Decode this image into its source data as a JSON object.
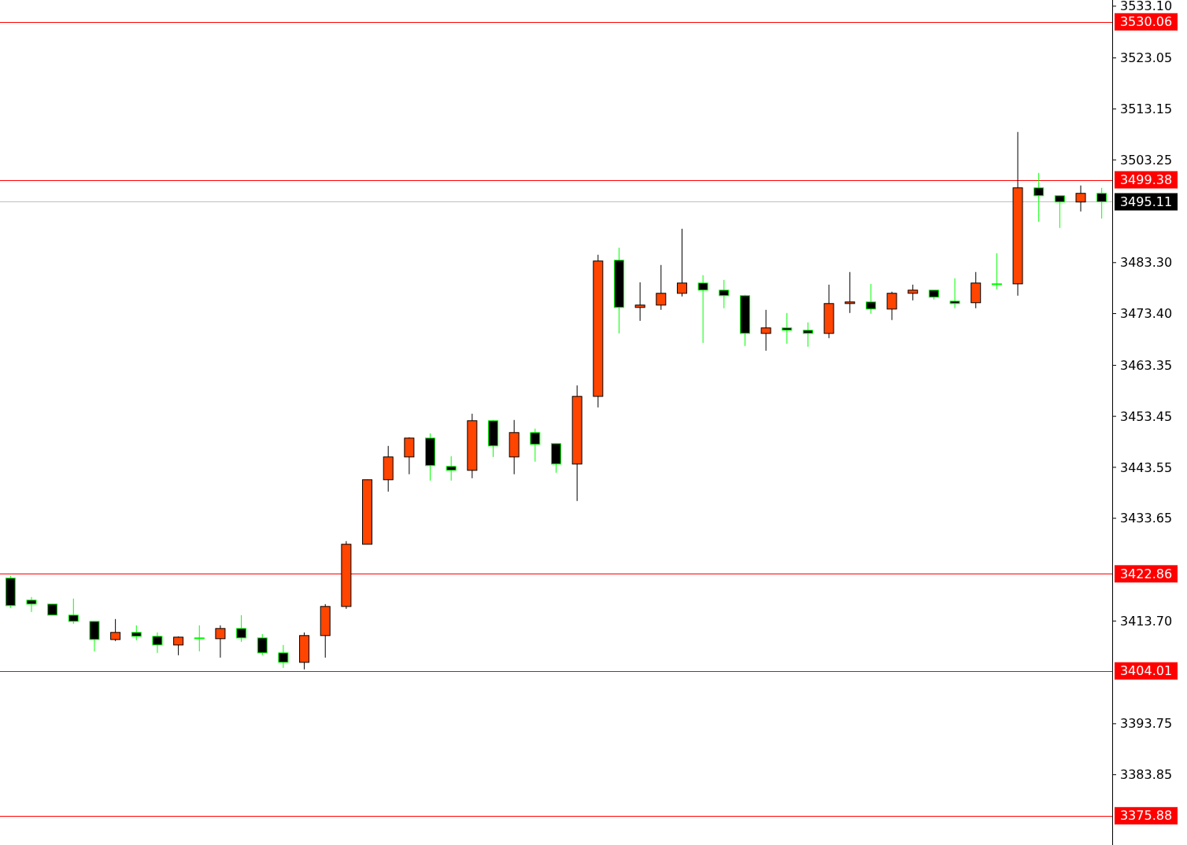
{
  "chart_data": {
    "type": "candlestick",
    "categories": [
      null,
      null,
      null,
      null,
      null,
      null,
      null,
      null,
      null,
      null,
      null,
      null,
      null,
      null,
      null,
      null,
      null,
      null,
      null,
      null,
      null,
      null,
      null,
      null,
      null,
      null,
      null,
      null,
      null,
      null,
      null,
      null,
      null,
      null,
      null,
      null,
      null,
      null,
      null,
      null,
      null,
      null,
      null,
      null,
      null,
      null,
      null,
      null,
      null,
      null,
      null,
      null,
      null
    ],
    "ohlc": [
      [
        3422.02,
        3422.48,
        3416.22,
        3416.68
      ],
      [
        3417.75,
        3418.36,
        3415.45,
        3416.98
      ],
      [
        3416.98,
        3416.98,
        3414.84,
        3414.84
      ],
      [
        3414.84,
        3418.05,
        3413.16,
        3413.62
      ],
      [
        3413.62,
        3413.62,
        3407.81,
        3410.1
      ],
      [
        3410.1,
        3414.08,
        3409.8,
        3411.48
      ],
      [
        3411.48,
        3412.86,
        3409.95,
        3410.72
      ],
      [
        3410.72,
        3411.48,
        3407.51,
        3409.04
      ],
      [
        3409.04,
        3410.72,
        3407.05,
        3410.56
      ],
      [
        3410.41,
        3412.86,
        3407.81,
        3410.41
      ],
      [
        3410.26,
        3412.86,
        3406.59,
        3412.24
      ],
      [
        3412.24,
        3414.84,
        3409.65,
        3410.41
      ],
      [
        3410.41,
        3411.17,
        3407.05,
        3407.51
      ],
      [
        3407.51,
        3409.04,
        3404.6,
        3405.67
      ],
      [
        3405.67,
        3411.48,
        3404.3,
        3410.87
      ],
      [
        3410.87,
        3416.98,
        3406.59,
        3416.52
      ],
      [
        3416.52,
        3429.21,
        3416.06,
        3428.6
      ],
      [
        3428.6,
        3441.13,
        3428.6,
        3441.13
      ],
      [
        3441.13,
        3447.7,
        3438.83,
        3445.56
      ],
      [
        3445.56,
        3449.38,
        3442.2,
        3449.22
      ],
      [
        3449.22,
        3450.14,
        3440.97,
        3443.88
      ],
      [
        3443.72,
        3445.71,
        3440.97,
        3442.96
      ],
      [
        3442.96,
        3453.96,
        3441.43,
        3452.59
      ],
      [
        3452.59,
        3452.74,
        3445.56,
        3447.7
      ],
      [
        3445.56,
        3452.74,
        3442.2,
        3450.29
      ],
      [
        3450.29,
        3451.06,
        3444.64,
        3448.0
      ],
      [
        3448.15,
        3448.15,
        3442.5,
        3444.18
      ],
      [
        3444.18,
        3459.46,
        3437.0,
        3457.32
      ],
      [
        3457.32,
        3484.83,
        3455.18,
        3483.61
      ],
      [
        3483.76,
        3486.2,
        3469.55,
        3474.59
      ],
      [
        3474.59,
        3479.48,
        3471.99,
        3475.05
      ],
      [
        3475.05,
        3482.84,
        3474.13,
        3477.34
      ],
      [
        3477.34,
        3489.87,
        3476.73,
        3479.33
      ],
      [
        3479.33,
        3480.86,
        3467.71,
        3477.95
      ],
      [
        3477.95,
        3479.94,
        3474.44,
        3476.88
      ],
      [
        3476.88,
        3477.04,
        3467.1,
        3469.55
      ],
      [
        3469.55,
        3474.13,
        3466.19,
        3470.62
      ],
      [
        3470.62,
        3473.52,
        3467.56,
        3470.16
      ],
      [
        3470.16,
        3471.69,
        3466.95,
        3469.55
      ],
      [
        3469.55,
        3479.02,
        3468.63,
        3475.35
      ],
      [
        3475.35,
        3481.47,
        3473.52,
        3475.66
      ],
      [
        3475.66,
        3479.17,
        3473.37,
        3474.28
      ],
      [
        3474.28,
        3477.65,
        3472.15,
        3477.34
      ],
      [
        3477.34,
        3479.02,
        3475.97,
        3477.95
      ],
      [
        3477.95,
        3477.95,
        3476.12,
        3476.58
      ],
      [
        3475.81,
        3480.25,
        3474.44,
        3475.35
      ],
      [
        3475.51,
        3481.47,
        3474.44,
        3479.33
      ],
      [
        3479.17,
        3485.14,
        3478.11,
        3479.17
      ],
      [
        3479.17,
        3508.67,
        3476.88,
        3497.82
      ],
      [
        3497.82,
        3500.72,
        3491.25,
        3496.29
      ],
      [
        3496.29,
        3496.29,
        3490.03,
        3495.07
      ],
      [
        3495.07,
        3498.28,
        3493.23,
        3496.75
      ],
      [
        3496.75,
        3497.82,
        3491.86,
        3495.11
      ]
    ],
    "colors": [
      "#000000",
      "#000000",
      "#000000",
      "#000000",
      "#000000",
      "#ff4500",
      "#000000",
      "#000000",
      "#ff4500",
      "#000000",
      "#ff4500",
      "#000000",
      "#000000",
      "#000000",
      "#ff4500",
      "#ff4500",
      "#ff4500",
      "#ff4500",
      "#ff4500",
      "#ff4500",
      "#000000",
      "#000000",
      "#ff4500",
      "#000000",
      "#ff4500",
      "#000000",
      "#000000",
      "#ff4500",
      "#ff4500",
      "#000000",
      "#ff4500",
      "#ff4500",
      "#ff4500",
      "#000000",
      "#000000",
      "#000000",
      "#ff4500",
      "#000000",
      "#000000",
      "#ff4500",
      "#ff4500",
      "#000000",
      "#ff4500",
      "#ff4500",
      "#000000",
      "#000000",
      "#ff4500",
      "#000000",
      "#ff4500",
      "#000000",
      "#000000",
      "#ff4500",
      "#000000"
    ],
    "ylim": [
      3370.2,
      3534.3
    ],
    "yticks": [
      {
        "value": 3533.1,
        "label": "3533.10"
      },
      {
        "value": 3523.05,
        "label": "3523.05"
      },
      {
        "value": 3513.15,
        "label": "3513.15"
      },
      {
        "value": 3503.25,
        "label": "3503.25"
      },
      {
        "value": 3483.3,
        "label": "3483.30"
      },
      {
        "value": 3473.4,
        "label": "3473.40"
      },
      {
        "value": 3463.35,
        "label": "3463.35"
      },
      {
        "value": 3453.45,
        "label": "3453.45"
      },
      {
        "value": 3443.55,
        "label": "3443.55"
      },
      {
        "value": 3433.65,
        "label": "3433.65"
      },
      {
        "value": 3413.7,
        "label": "3413.70"
      },
      {
        "value": 3393.75,
        "label": "3393.75"
      },
      {
        "value": 3383.85,
        "label": "3383.85"
      }
    ],
    "tick_labels": "y",
    "ref_lines": [
      {
        "axis": "y",
        "value": 3530.06,
        "label": "3530.06",
        "color": "#ff0000"
      },
      {
        "axis": "y",
        "value": 3499.38,
        "label": "3499.38",
        "color": "#ff0000"
      },
      {
        "axis": "y",
        "value": 3495.11,
        "label": "3495.11",
        "color": "#c0c0c0"
      },
      {
        "axis": "y",
        "value": 3422.86,
        "label": "3422.86",
        "color": "#ff0000"
      },
      {
        "axis": "y",
        "value": 3404.01,
        "label": "3404.01",
        "color": "#ff0000"
      },
      {
        "axis": "y",
        "value": 3375.88,
        "label": "3375.88",
        "color": "#ff0000"
      }
    ]
  }
}
